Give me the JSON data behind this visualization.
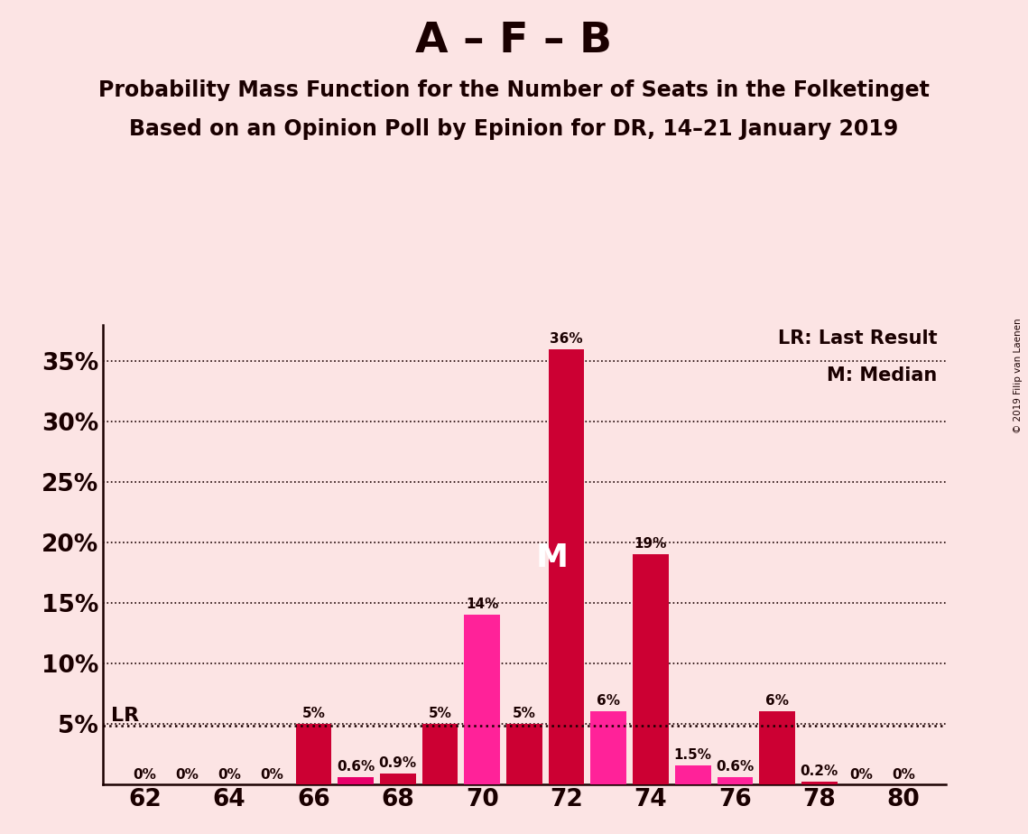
{
  "title": "A – F – B",
  "subtitle1": "Probability Mass Function for the Number of Seats in the Folketinget",
  "subtitle2": "Based on an Opinion Poll by Epinion for DR, 14–21 January 2019",
  "copyright": "© 2019 Filip van Laenen",
  "legend_lr": "LR: Last Result",
  "legend_m": "M: Median",
  "seats": [
    62,
    63,
    64,
    65,
    66,
    67,
    68,
    69,
    70,
    71,
    72,
    73,
    74,
    75,
    76,
    77,
    78,
    79,
    80
  ],
  "values": [
    0.0,
    0.0,
    0.0,
    0.0,
    5.0,
    0.6,
    0.9,
    5.0,
    14.0,
    5.0,
    36.0,
    6.0,
    19.0,
    1.5,
    0.6,
    6.0,
    0.2,
    0.0,
    0.0
  ],
  "colors": [
    "#cc0033",
    "#e8006a",
    "#cc0033",
    "#e8006a",
    "#cc0033",
    "#e8006a",
    "#cc0033",
    "#cc0033",
    "#ff2299",
    "#cc0033",
    "#cc0033",
    "#ff2299",
    "#cc0033",
    "#ff2299",
    "#ff2299",
    "#cc0033",
    "#cc0033",
    "#e8006a",
    "#cc0033"
  ],
  "lr_value": 4.8,
  "lr_seat": 69,
  "median_seat": 72,
  "background_color": "#fce4e4",
  "ylim_max": 38,
  "yticks": [
    5,
    10,
    15,
    20,
    25,
    30,
    35
  ],
  "bar_label_fontsize": 11,
  "title_fontsize": 34,
  "subtitle_fontsize": 17,
  "axis_tick_fontsize": 19,
  "legend_fontsize": 15,
  "lr_fontsize": 16,
  "m_fontsize": 26
}
